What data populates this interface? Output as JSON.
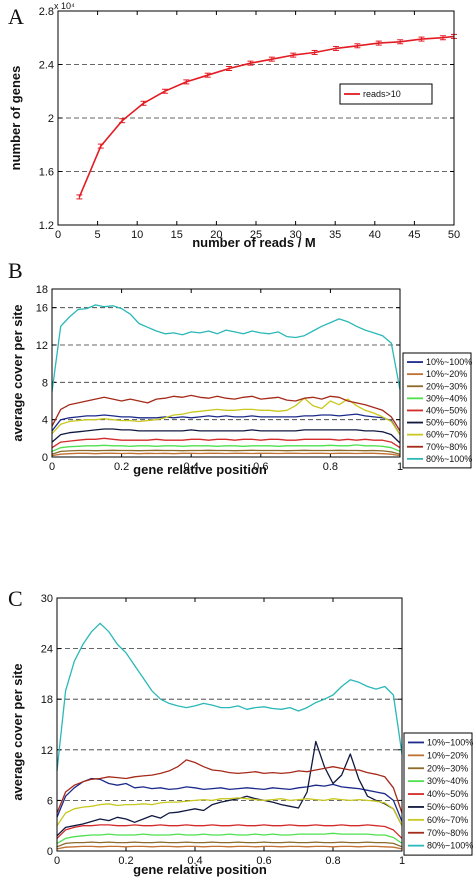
{
  "chart_data": [
    {
      "panel_label": "A",
      "type": "line",
      "xlabel": "number of reads / M",
      "ylabel": "number of genes",
      "y_multiplier": "x 10⁴",
      "xlim": [
        0,
        50
      ],
      "ylim": [
        1.2,
        2.8
      ],
      "xticks": [
        0,
        5,
        10,
        15,
        20,
        25,
        30,
        35,
        40,
        45,
        50
      ],
      "yticks": [
        1.2,
        1.6,
        2,
        2.4,
        2.8
      ],
      "ytick_labels": [
        "1.2",
        "1.6",
        "2",
        "2.4",
        "2.8"
      ],
      "grid": "dashed horizontal",
      "legend_position": "right",
      "series": [
        {
          "name": "reads>10",
          "color": "#e31b23",
          "x": [
            2.7,
            5.4,
            8.1,
            10.8,
            13.5,
            16.2,
            18.9,
            21.6,
            24.3,
            27,
            29.7,
            32.4,
            35.1,
            37.8,
            40.5,
            43.2,
            45.9,
            48.6,
            50
          ],
          "values": [
            1.41,
            1.79,
            1.98,
            2.11,
            2.2,
            2.27,
            2.32,
            2.37,
            2.41,
            2.44,
            2.47,
            2.49,
            2.52,
            2.54,
            2.56,
            2.57,
            2.59,
            2.6,
            2.61
          ],
          "error_bars": true
        }
      ]
    },
    {
      "panel_label": "B",
      "type": "line",
      "xlabel": "gene relative position",
      "ylabel": "average cover per site",
      "xlim": [
        0,
        1
      ],
      "ylim": [
        0,
        18
      ],
      "xticks": [
        0,
        0.2,
        0.4,
        0.6,
        0.8,
        1
      ],
      "xtick_labels": [
        "0",
        "0.2",
        "0.4",
        "0.6",
        "0.8",
        "1"
      ],
      "yticks": [
        0,
        4,
        8,
        12,
        16,
        18
      ],
      "grid": "dashed horizontal",
      "legend_position": "right",
      "x": [
        0,
        0.025,
        0.05,
        0.075,
        0.1,
        0.125,
        0.15,
        0.175,
        0.2,
        0.225,
        0.25,
        0.275,
        0.3,
        0.325,
        0.35,
        0.375,
        0.4,
        0.425,
        0.45,
        0.475,
        0.5,
        0.525,
        0.55,
        0.575,
        0.6,
        0.625,
        0.65,
        0.675,
        0.7,
        0.725,
        0.75,
        0.775,
        0.8,
        0.825,
        0.85,
        0.875,
        0.9,
        0.925,
        0.95,
        0.975,
        1
      ],
      "series": [
        {
          "name": "10%~100%",
          "color": "#1b2a8a",
          "values": [
            2.8,
            4.0,
            4.2,
            4.3,
            4.4,
            4.4,
            4.5,
            4.4,
            4.3,
            4.3,
            4.2,
            4.2,
            4.2,
            4.3,
            4.2,
            4.3,
            4.2,
            4.3,
            4.4,
            4.3,
            4.4,
            4.3,
            4.3,
            4.4,
            4.3,
            4.3,
            4.3,
            4.3,
            4.3,
            4.4,
            4.4,
            4.5,
            4.5,
            4.4,
            4.5,
            4.6,
            4.4,
            4.3,
            4.2,
            3.9,
            2.4
          ]
        },
        {
          "name": "10%~20%",
          "color": "#c07030",
          "values": [
            0.15,
            0.3,
            0.35,
            0.4,
            0.4,
            0.35,
            0.4,
            0.4,
            0.38,
            0.4,
            0.35,
            0.4,
            0.38,
            0.4,
            0.35,
            0.4,
            0.4,
            0.38,
            0.4,
            0.4,
            0.38,
            0.4,
            0.4,
            0.38,
            0.4,
            0.4,
            0.38,
            0.4,
            0.4,
            0.38,
            0.4,
            0.4,
            0.38,
            0.4,
            0.4,
            0.38,
            0.4,
            0.4,
            0.35,
            0.3,
            0.15
          ]
        },
        {
          "name": "20%~30%",
          "color": "#8b6a2a",
          "values": [
            0.3,
            0.6,
            0.65,
            0.7,
            0.7,
            0.68,
            0.7,
            0.72,
            0.7,
            0.7,
            0.68,
            0.7,
            0.72,
            0.7,
            0.7,
            0.68,
            0.7,
            0.7,
            0.72,
            0.7,
            0.7,
            0.68,
            0.7,
            0.72,
            0.7,
            0.7,
            0.7,
            0.68,
            0.7,
            0.72,
            0.7,
            0.7,
            0.7,
            0.72,
            0.7,
            0.7,
            0.68,
            0.7,
            0.65,
            0.55,
            0.3
          ]
        },
        {
          "name": "30%~40%",
          "color": "#4ee04e",
          "values": [
            0.6,
            1.0,
            1.1,
            1.15,
            1.2,
            1.2,
            1.25,
            1.2,
            1.2,
            1.15,
            1.2,
            1.2,
            1.15,
            1.2,
            1.2,
            1.15,
            1.2,
            1.2,
            1.2,
            1.15,
            1.2,
            1.2,
            1.15,
            1.2,
            1.2,
            1.2,
            1.15,
            1.2,
            1.2,
            1.2,
            1.2,
            1.2,
            1.25,
            1.2,
            1.2,
            1.3,
            1.2,
            1.2,
            1.15,
            1.0,
            0.6
          ]
        },
        {
          "name": "40%~50%",
          "color": "#d42a2a",
          "values": [
            1.0,
            1.6,
            1.7,
            1.8,
            1.9,
            1.9,
            2.0,
            1.9,
            1.8,
            1.8,
            1.8,
            1.8,
            1.9,
            1.8,
            1.8,
            1.8,
            1.9,
            1.9,
            1.8,
            1.9,
            1.9,
            1.8,
            1.9,
            1.9,
            1.8,
            1.9,
            1.9,
            1.8,
            1.8,
            1.9,
            1.9,
            1.9,
            1.9,
            1.8,
            1.9,
            1.8,
            1.9,
            1.8,
            1.8,
            1.6,
            1.0
          ]
        },
        {
          "name": "50%~60%",
          "color": "#101840",
          "values": [
            1.6,
            2.4,
            2.6,
            2.7,
            2.8,
            2.9,
            3.0,
            3.0,
            2.9,
            2.9,
            2.8,
            2.8,
            2.8,
            2.8,
            2.8,
            2.8,
            2.9,
            2.8,
            2.8,
            2.8,
            2.8,
            2.8,
            2.8,
            2.9,
            2.8,
            2.8,
            2.8,
            2.8,
            2.8,
            2.9,
            2.9,
            2.9,
            2.9,
            2.9,
            2.9,
            2.9,
            2.8,
            2.8,
            2.7,
            2.4,
            1.5
          ]
        },
        {
          "name": "60%~70%",
          "color": "#c8c820",
          "values": [
            2.5,
            3.5,
            3.8,
            3.9,
            4.0,
            4.0,
            4.1,
            4.0,
            3.9,
            3.9,
            3.8,
            3.9,
            4.0,
            4.2,
            4.5,
            4.6,
            4.8,
            4.9,
            5.0,
            5.1,
            5.0,
            5.0,
            5.1,
            5.1,
            5.0,
            5.0,
            4.9,
            5.0,
            5.5,
            6.3,
            5.5,
            5.2,
            6.0,
            5.6,
            6.2,
            5.5,
            5.0,
            4.7,
            4.3,
            3.8,
            2.4
          ]
        },
        {
          "name": "70%~80%",
          "color": "#a52a1a",
          "values": [
            3.3,
            5.1,
            5.6,
            5.8,
            6.0,
            6.2,
            6.4,
            6.2,
            6.0,
            6.2,
            6.0,
            5.8,
            6.2,
            6.3,
            6.5,
            6.4,
            6.6,
            6.4,
            6.3,
            6.5,
            6.3,
            6.2,
            6.4,
            6.5,
            6.2,
            6.3,
            6.4,
            6.1,
            6.0,
            6.3,
            6.4,
            6.2,
            6.5,
            6.4,
            6.0,
            5.8,
            5.6,
            5.3,
            5.0,
            4.3,
            2.8
          ]
        },
        {
          "name": "80%~100%",
          "color": "#2bb8b8",
          "values": [
            7.0,
            14.0,
            15.0,
            15.8,
            15.9,
            16.3,
            16.1,
            16.2,
            15.9,
            15.3,
            14.3,
            13.9,
            13.5,
            13.2,
            13.3,
            13.1,
            13.4,
            13.3,
            13.5,
            13.2,
            13.6,
            13.4,
            13.2,
            13.5,
            13.3,
            13.2,
            13.4,
            12.9,
            12.8,
            13.0,
            13.5,
            14.0,
            14.4,
            14.8,
            14.5,
            14.0,
            13.6,
            13.3,
            13.0,
            12.2,
            7.2
          ]
        }
      ]
    },
    {
      "panel_label": "C",
      "type": "line",
      "xlabel": "gene relative position",
      "ylabel": "average cover per site",
      "xlim": [
        0,
        1
      ],
      "ylim": [
        0,
        30
      ],
      "xticks": [
        0,
        0.2,
        0.4,
        0.6,
        0.8,
        1
      ],
      "xtick_labels": [
        "0",
        "0.2",
        "0.4",
        "0.6",
        "0.8",
        "1"
      ],
      "yticks": [
        0,
        6,
        12,
        18,
        24,
        30
      ],
      "grid": "dashed horizontal",
      "legend_position": "right",
      "x": [
        0,
        0.025,
        0.05,
        0.075,
        0.1,
        0.125,
        0.15,
        0.175,
        0.2,
        0.225,
        0.25,
        0.275,
        0.3,
        0.325,
        0.35,
        0.375,
        0.4,
        0.425,
        0.45,
        0.475,
        0.5,
        0.525,
        0.55,
        0.575,
        0.6,
        0.625,
        0.65,
        0.675,
        0.7,
        0.725,
        0.75,
        0.775,
        0.8,
        0.825,
        0.85,
        0.875,
        0.9,
        0.925,
        0.95,
        0.975,
        1
      ],
      "series": [
        {
          "name": "10%~100%",
          "color": "#1b2a8a",
          "values": [
            4.0,
            6.5,
            7.5,
            8.2,
            8.6,
            8.5,
            8.0,
            7.8,
            8.0,
            7.5,
            7.6,
            7.4,
            7.5,
            7.3,
            7.4,
            7.6,
            7.5,
            7.3,
            7.4,
            7.5,
            7.3,
            7.4,
            7.5,
            7.4,
            7.3,
            7.5,
            7.4,
            7.3,
            7.5,
            7.6,
            7.8,
            7.7,
            7.9,
            7.6,
            7.5,
            7.4,
            7.2,
            7.0,
            6.8,
            6.0,
            3.5
          ]
        },
        {
          "name": "10%~20%",
          "color": "#c07030",
          "values": [
            0.25,
            0.45,
            0.5,
            0.55,
            0.55,
            0.5,
            0.55,
            0.55,
            0.5,
            0.55,
            0.55,
            0.5,
            0.55,
            0.55,
            0.5,
            0.55,
            0.55,
            0.5,
            0.55,
            0.55,
            0.5,
            0.55,
            0.55,
            0.5,
            0.55,
            0.55,
            0.5,
            0.55,
            0.55,
            0.5,
            0.55,
            0.55,
            0.5,
            0.55,
            0.55,
            0.5,
            0.55,
            0.55,
            0.5,
            0.45,
            0.25
          ]
        },
        {
          "name": "20%~30%",
          "color": "#8b6a2a",
          "values": [
            0.5,
            0.9,
            1.0,
            1.0,
            1.05,
            1.0,
            1.05,
            1.0,
            1.0,
            1.05,
            1.0,
            1.0,
            1.05,
            1.0,
            1.0,
            1.05,
            1.0,
            1.0,
            1.05,
            1.0,
            1.0,
            1.05,
            1.0,
            1.0,
            1.05,
            1.0,
            1.0,
            1.05,
            1.0,
            1.0,
            1.05,
            1.0,
            1.0,
            1.05,
            1.0,
            1.0,
            1.05,
            1.0,
            1.0,
            0.9,
            0.5
          ]
        },
        {
          "name": "30%~40%",
          "color": "#4ee04e",
          "values": [
            0.9,
            1.5,
            1.7,
            1.8,
            1.9,
            1.9,
            2.0,
            1.9,
            1.9,
            1.9,
            2.0,
            1.9,
            1.9,
            1.9,
            2.0,
            1.9,
            1.9,
            2.0,
            1.9,
            1.9,
            2.0,
            1.9,
            1.9,
            2.0,
            1.9,
            2.0,
            1.9,
            1.9,
            2.0,
            2.0,
            2.0,
            2.0,
            2.1,
            2.0,
            2.0,
            2.0,
            2.0,
            1.9,
            1.9,
            1.6,
            0.9
          ]
        },
        {
          "name": "40%~50%",
          "color": "#d42a2a",
          "values": [
            1.5,
            2.5,
            2.8,
            3.0,
            3.0,
            3.1,
            3.1,
            3.0,
            3.0,
            3.1,
            3.0,
            3.0,
            3.1,
            3.0,
            3.0,
            3.1,
            3.0,
            3.0,
            3.1,
            3.0,
            3.0,
            3.1,
            3.0,
            3.0,
            3.1,
            3.0,
            3.0,
            3.1,
            3.0,
            3.0,
            3.1,
            3.0,
            3.0,
            3.1,
            3.0,
            3.0,
            3.1,
            3.0,
            2.9,
            2.5,
            1.5
          ]
        },
        {
          "name": "50%~60%",
          "color": "#101840",
          "values": [
            1.8,
            2.8,
            3.0,
            3.2,
            3.5,
            3.8,
            3.6,
            4.0,
            3.8,
            3.4,
            3.8,
            4.2,
            3.9,
            4.5,
            4.6,
            4.8,
            5.0,
            4.8,
            5.5,
            5.8,
            6.0,
            6.2,
            6.5,
            6.2,
            6.0,
            5.8,
            5.5,
            5.3,
            5.1,
            7.0,
            13.0,
            10.0,
            8.0,
            9.0,
            11.5,
            8.5,
            6.5,
            6.0,
            5.6,
            5.0,
            3.0
          ]
        },
        {
          "name": "60%~70%",
          "color": "#c8c820",
          "values": [
            3.0,
            4.5,
            5.0,
            5.2,
            5.3,
            5.5,
            5.6,
            5.4,
            5.5,
            5.5,
            5.6,
            5.5,
            5.7,
            5.8,
            5.8,
            5.9,
            6.0,
            6.1,
            6.0,
            6.2,
            6.2,
            6.3,
            6.2,
            6.1,
            6.0,
            6.1,
            6.2,
            6.0,
            6.1,
            6.2,
            6.1,
            6.0,
            6.2,
            6.1,
            6.0,
            6.1,
            6.0,
            5.9,
            5.7,
            5.0,
            3.0
          ]
        },
        {
          "name": "70%~80%",
          "color": "#a52a1a",
          "values": [
            4.5,
            7.0,
            7.8,
            8.2,
            8.5,
            8.6,
            8.8,
            8.7,
            8.6,
            8.8,
            8.9,
            9.0,
            9.2,
            9.5,
            10.0,
            10.8,
            10.5,
            10.0,
            9.6,
            9.5,
            9.3,
            9.2,
            9.3,
            9.4,
            9.2,
            9.3,
            9.2,
            9.3,
            9.5,
            9.4,
            9.6,
            9.8,
            10.0,
            9.8,
            9.6,
            9.6,
            9.3,
            9.1,
            8.8,
            7.5,
            4.5
          ]
        },
        {
          "name": "80%~100%",
          "color": "#2bb8b8",
          "values": [
            9.5,
            19.0,
            22.5,
            24.5,
            26.0,
            27.0,
            26.0,
            24.5,
            23.5,
            22.0,
            20.5,
            19.0,
            18.0,
            17.5,
            17.2,
            17.0,
            17.2,
            17.5,
            17.3,
            17.0,
            17.0,
            17.2,
            16.8,
            17.0,
            17.1,
            16.9,
            16.8,
            17.0,
            16.6,
            17.0,
            17.6,
            18.0,
            18.5,
            19.5,
            20.3,
            20.0,
            19.5,
            19.2,
            19.5,
            18.5,
            11.5
          ]
        }
      ]
    }
  ]
}
